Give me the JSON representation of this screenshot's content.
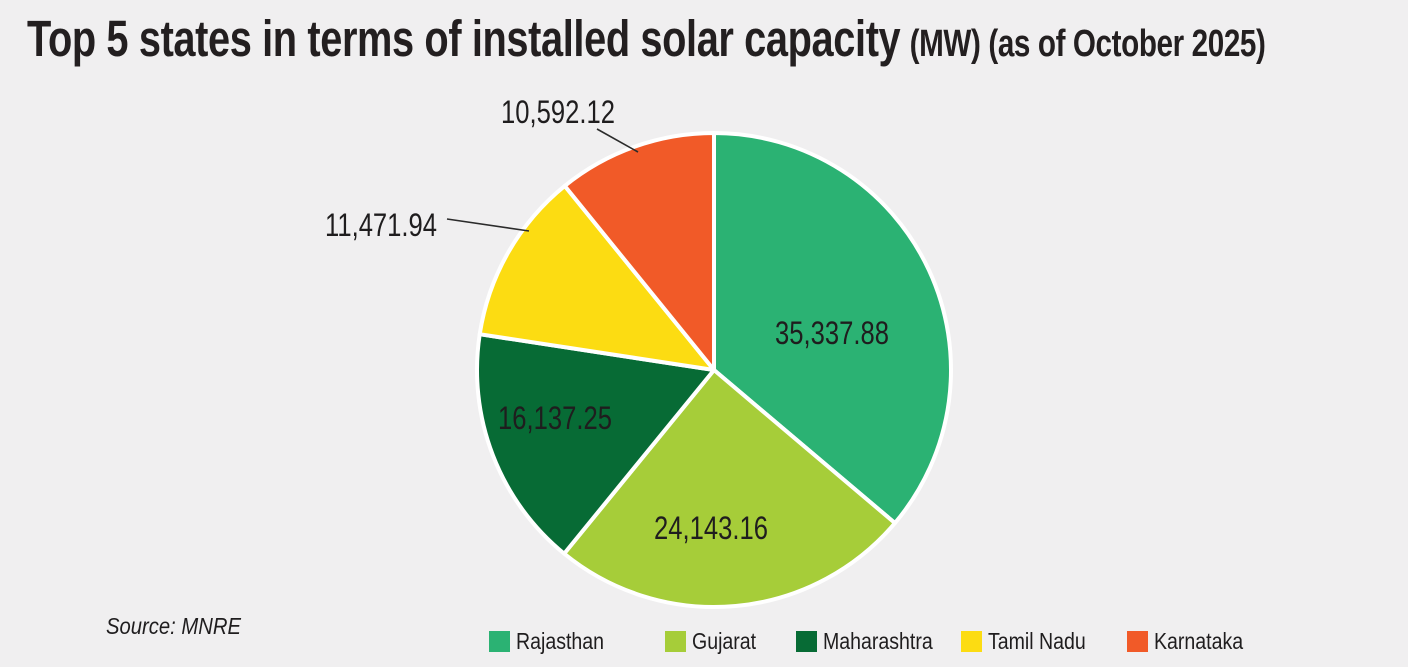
{
  "title": {
    "main": "Top 5 states in terms of installed solar capacity",
    "suffix": "(MW) (as of October 2025)"
  },
  "source_note": "Source: MNRE",
  "colors": {
    "background": "#f0eff0",
    "title_text": "#231f20",
    "value_label_text": "#1f1d1e",
    "slice_border": "#ffffff",
    "leader_line": "#2b2b2b"
  },
  "chart_data": {
    "type": "pie",
    "title": "Top 5 states in terms of installed solar capacity (MW) (as of October 2025)",
    "unit": "MW",
    "categories": [
      "Rajasthan",
      "Gujarat",
      "Maharashtra",
      "Tamil Nadu",
      "Karnataka"
    ],
    "values": [
      35337.88,
      24143.16,
      16137.25,
      11471.94,
      10592.12
    ],
    "value_labels": [
      "35,337.88",
      "24,143.16",
      "16,137.25",
      "11,471.94",
      "10,592.12"
    ],
    "colors": [
      "#2bb273",
      "#a6cd39",
      "#076b35",
      "#fcdc12",
      "#f15a28"
    ],
    "start_angle_deg": 0,
    "direction": "clockwise",
    "legend_position": "bottom",
    "label_placement": [
      "inside",
      "inside",
      "inside",
      "outside",
      "outside"
    ],
    "source": "Source: MNRE"
  }
}
